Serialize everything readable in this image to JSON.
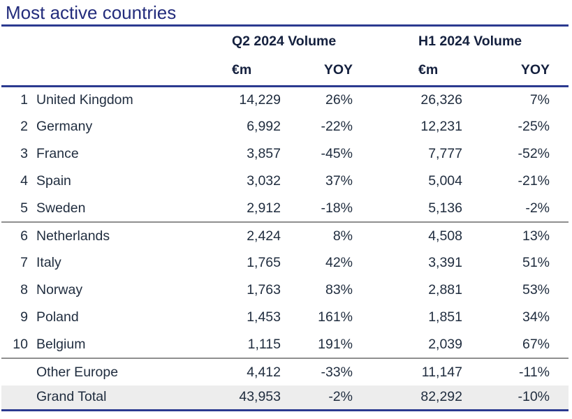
{
  "chart_data": {
    "type": "table",
    "title": "Most active countries",
    "group_headers": {
      "q2": "Q2 2024 Volume",
      "h1": "H1 2024 Volume"
    },
    "sub_headers": {
      "q2_m": "€m",
      "q2_yoy": "YOY",
      "h1_m": "€m",
      "h1_yoy": "YOY"
    },
    "rows": [
      {
        "rank": "1",
        "country": "United Kingdom",
        "q2_m": "14,229",
        "q2_yoy": "26%",
        "h1_m": "26,326",
        "h1_yoy": "7%"
      },
      {
        "rank": "2",
        "country": "Germany",
        "q2_m": "6,992",
        "q2_yoy": "-22%",
        "h1_m": "12,231",
        "h1_yoy": "-25%"
      },
      {
        "rank": "3",
        "country": "France",
        "q2_m": "3,857",
        "q2_yoy": "-45%",
        "h1_m": "7,777",
        "h1_yoy": "-52%"
      },
      {
        "rank": "4",
        "country": "Spain",
        "q2_m": "3,032",
        "q2_yoy": "37%",
        "h1_m": "5,004",
        "h1_yoy": "-21%"
      },
      {
        "rank": "5",
        "country": "Sweden",
        "q2_m": "2,912",
        "q2_yoy": "-18%",
        "h1_m": "5,136",
        "h1_yoy": "-2%"
      },
      {
        "rank": "6",
        "country": "Netherlands",
        "q2_m": "2,424",
        "q2_yoy": "8%",
        "h1_m": "4,508",
        "h1_yoy": "13%"
      },
      {
        "rank": "7",
        "country": "Italy",
        "q2_m": "1,765",
        "q2_yoy": "42%",
        "h1_m": "3,391",
        "h1_yoy": "51%"
      },
      {
        "rank": "8",
        "country": "Norway",
        "q2_m": "1,763",
        "q2_yoy": "83%",
        "h1_m": "2,881",
        "h1_yoy": "53%"
      },
      {
        "rank": "9",
        "country": "Poland",
        "q2_m": "1,453",
        "q2_yoy": "161%",
        "h1_m": "1,851",
        "h1_yoy": "34%"
      },
      {
        "rank": "10",
        "country": "Belgium",
        "q2_m": "1,115",
        "q2_yoy": "191%",
        "h1_m": "2,039",
        "h1_yoy": "67%"
      }
    ],
    "summary_rows": [
      {
        "label": "Other Europe",
        "q2_m": "4,412",
        "q2_yoy": "-33%",
        "h1_m": "11,147",
        "h1_yoy": "-11%"
      },
      {
        "label": "Grand Total",
        "q2_m": "43,953",
        "q2_yoy": "-2%",
        "h1_m": "82,292",
        "h1_yoy": "-10%"
      }
    ],
    "colors": {
      "title_text": "#232C7C",
      "rule_blue": "#2B3A90",
      "divider_gray": "#8F8F8F",
      "header_text": "#14203E",
      "body_text": "#1F2C3E",
      "grand_total_bg": "#EDEDED"
    },
    "layout": {
      "grid": "off",
      "group_divider_after_rows": [
        5,
        10
      ],
      "highlighted_row": "Grand Total"
    }
  }
}
